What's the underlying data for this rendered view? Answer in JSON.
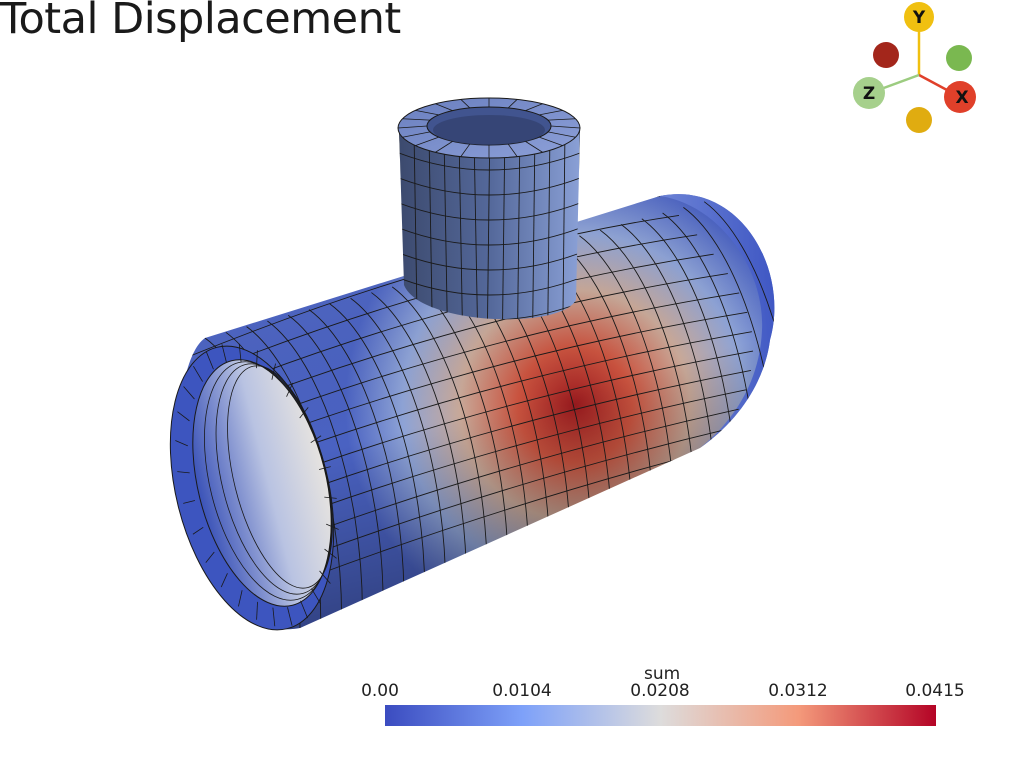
{
  "title": "Total Displacement",
  "colorbar": {
    "title": "sum",
    "ticks": [
      "0.00",
      "0.0104",
      "0.0208",
      "0.0312",
      "0.0415"
    ],
    "colors": [
      "#3b4cc0",
      "#7ea1f9",
      "#dddcdc",
      "#f49a7b",
      "#b40426"
    ]
  },
  "orientation_axes": {
    "x_label": "X",
    "y_label": "Y",
    "z_label": "Z",
    "x_color": "#e0402a",
    "y_color": "#f0c010",
    "z_color": "#9ccc80"
  },
  "surface_colors": {
    "low": "#3a4fbd",
    "mid": "#d8d6d4",
    "high": "#9a1a1e"
  }
}
